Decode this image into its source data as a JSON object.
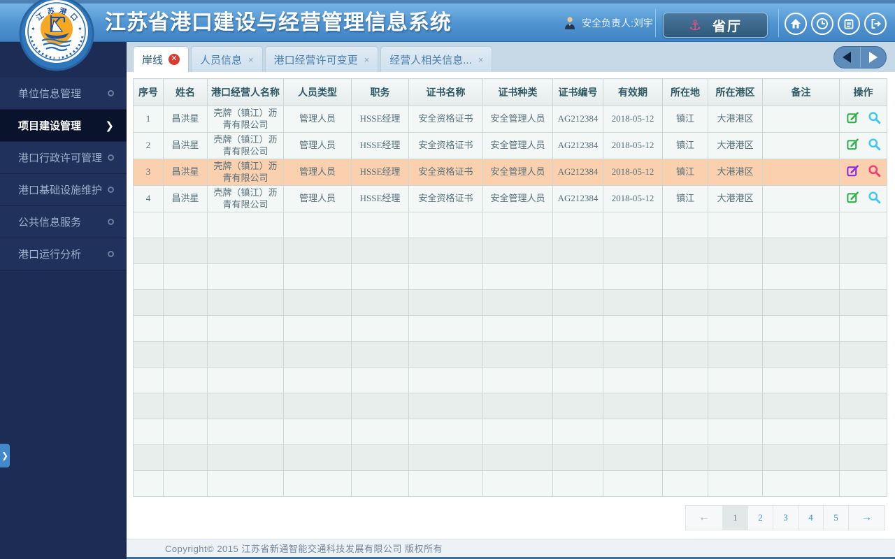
{
  "app": {
    "title": "江苏省港口建设与经营管理信息系统",
    "user": {
      "label": "安全负责人:刘宇"
    },
    "dept_button": {
      "label": "省厅",
      "icon": "anchor-icon"
    },
    "quick_icons": [
      "home-icon",
      "clock-icon",
      "notepad-icon",
      "logout-icon"
    ]
  },
  "sidebar": {
    "items": [
      {
        "label": "单位信息管理",
        "active": false
      },
      {
        "label": "项目建设管理",
        "active": true
      },
      {
        "label": "港口行政许可管理",
        "active": false
      },
      {
        "label": "港口基础设施维护",
        "active": false
      },
      {
        "label": "公共信息服务",
        "active": false
      },
      {
        "label": "港口运行分析",
        "active": false
      }
    ]
  },
  "tabs": {
    "items": [
      {
        "label": "岸线",
        "active": true,
        "close_icon": "close-circle-icon"
      },
      {
        "label": "人员信息",
        "active": false,
        "close_icon": "close-x-icon"
      },
      {
        "label": "港口经营许可变更",
        "active": false,
        "close_icon": "close-x-icon"
      },
      {
        "label": "经营人相关信息...",
        "active": false,
        "close_icon": "close-x-icon"
      }
    ]
  },
  "table": {
    "columns": [
      "序号",
      "姓名",
      "港口经营人名称",
      "人员类型",
      "职务",
      "证书名称",
      "证书种类",
      "证书编号",
      "有效期",
      "所在地",
      "所在港区",
      "备注",
      "操作"
    ],
    "rows": [
      {
        "cells": [
          "1",
          "昌洪星",
          "壳牌（镇江）沥青有限公司",
          "管理人员",
          "HSSE经理",
          "安全资格证书",
          "安全管理人员",
          "AG212384",
          "2018-05-12",
          "镇江",
          "大港港区",
          ""
        ]
      },
      {
        "cells": [
          "2",
          "昌洪星",
          "壳牌（镇江）沥青有限公司",
          "管理人员",
          "HSSE经理",
          "安全资格证书",
          "安全管理人员",
          "AG212384",
          "2018-05-12",
          "镇江",
          "大港港区",
          ""
        ]
      },
      {
        "cells": [
          "3",
          "昌洪星",
          "壳牌（镇江）沥青有限公司",
          "管理人员",
          "HSSE经理",
          "安全资格证书",
          "安全管理人员",
          "AG212384",
          "2018-05-12",
          "镇江",
          "大港港区",
          ""
        ]
      },
      {
        "cells": [
          "4",
          "昌洪星",
          "壳牌（镇江）沥青有限公司",
          "管理人员",
          "HSSE经理",
          "安全资格证书",
          "安全管理人员",
          "AG212384",
          "2018-05-12",
          "镇江",
          "大港港区",
          ""
        ]
      }
    ],
    "highlighted_row": 2,
    "empty_rows": 11,
    "row_action_icons": [
      "edit-icon",
      "search-icon"
    ]
  },
  "pagination": {
    "pages": [
      "1",
      "2",
      "3",
      "4",
      "5"
    ],
    "current": "1"
  },
  "footer": {
    "text": "Copyright©  2015  江苏省新通智能交通科技发展有限公司  版权所有"
  },
  "colors": {
    "header_gradient_top": "#75b3e5",
    "header_gradient_bottom": "#4083c3",
    "sidebar_bg": "#1c2c55",
    "active_menu_bg": "#0a132c",
    "tabstrip_bg": "#c7d8e7",
    "row_light": "#f3f7f6",
    "row_alt": "#e8eeec",
    "row_highlight": "#fbd0ae",
    "edit_icon_green": "#2fb04c",
    "search_icon_cyan": "#41c7f0",
    "edit_icon_purple": "#8a2be2",
    "search_icon_pink": "#f23d73",
    "close_red": "#dc3a2c",
    "page_link_blue": "#3b8fd8"
  }
}
